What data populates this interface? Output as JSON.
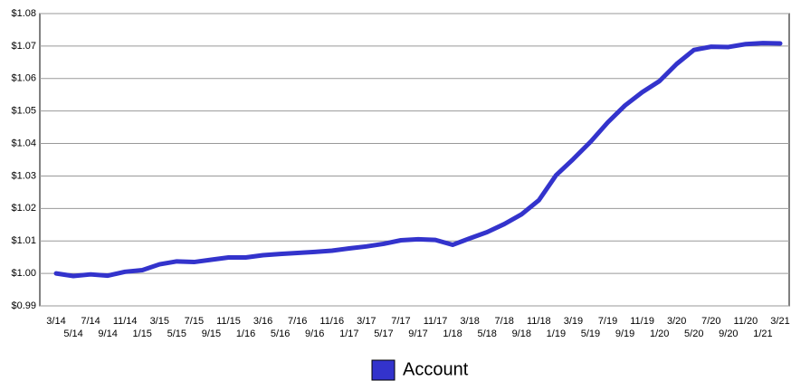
{
  "chart_data": {
    "type": "line",
    "categories": [
      "3/14",
      "5/14",
      "7/14",
      "9/14",
      "11/14",
      "1/15",
      "3/15",
      "5/15",
      "7/15",
      "9/15",
      "11/15",
      "1/16",
      "3/16",
      "5/16",
      "7/16",
      "9/16",
      "11/16",
      "1/17",
      "3/17",
      "5/17",
      "7/17",
      "9/17",
      "11/17",
      "1/18",
      "3/18",
      "5/18",
      "7/18",
      "9/18",
      "11/18",
      "1/19",
      "3/19",
      "5/19",
      "7/19",
      "9/19",
      "11/19",
      "1/20",
      "3/20",
      "5/20",
      "7/20",
      "9/20",
      "11/20",
      "1/21",
      "3/21"
    ],
    "series": [
      {
        "name": "Account",
        "color": "#3333cc",
        "values": [
          1.0,
          0.9992,
          0.9997,
          0.9993,
          1.0005,
          1.001,
          1.0028,
          1.0037,
          1.0035,
          1.0042,
          1.0049,
          1.0049,
          1.0056,
          1.006,
          1.0063,
          1.0066,
          1.007,
          1.0077,
          1.0083,
          1.0091,
          1.0102,
          1.0105,
          1.0103,
          1.0088,
          1.0108,
          1.0127,
          1.0152,
          1.0182,
          1.0225,
          1.0302,
          1.0352,
          1.0405,
          1.0465,
          1.0517,
          1.0558,
          1.0592,
          1.0645,
          1.0688,
          1.0698,
          1.0697,
          1.0706,
          1.0709,
          1.0708
        ]
      }
    ],
    "ylim": [
      0.99,
      1.08
    ],
    "yticks": [
      {
        "value": 0.99,
        "label": "$0.99"
      },
      {
        "value": 1.0,
        "label": "$1.00"
      },
      {
        "value": 1.01,
        "label": "$1.01"
      },
      {
        "value": 1.02,
        "label": "$1.02"
      },
      {
        "value": 1.03,
        "label": "$1.03"
      },
      {
        "value": 1.04,
        "label": "$1.04"
      },
      {
        "value": 1.05,
        "label": "$1.05"
      },
      {
        "value": 1.06,
        "label": "$1.06"
      },
      {
        "value": 1.07,
        "label": "$1.07"
      },
      {
        "value": 1.08,
        "label": "$1.08"
      }
    ],
    "grid": true
  }
}
